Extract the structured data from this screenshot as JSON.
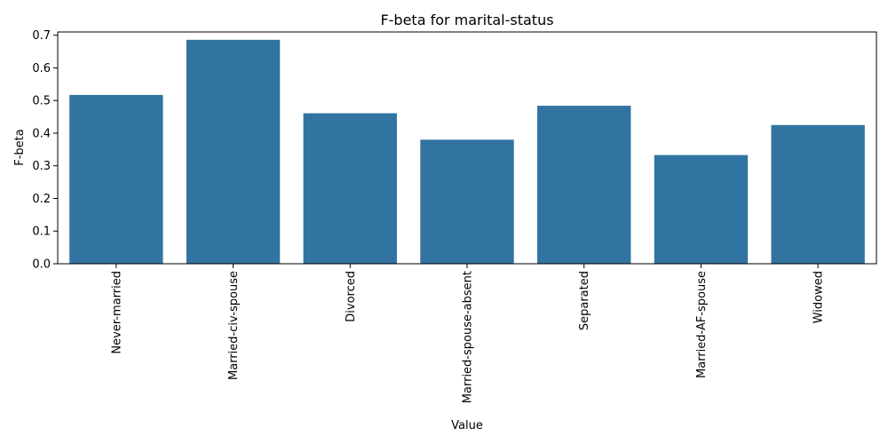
{
  "chart_data": {
    "type": "bar",
    "title": "F-beta for marital-status",
    "xlabel": "Value",
    "ylabel": "F-beta",
    "categories": [
      "Never-married",
      "Married-civ-spouse",
      "Divorced",
      "Married-spouse-absent",
      "Separated",
      "Married-AF-spouse",
      "Widowed"
    ],
    "values": [
      0.517,
      0.686,
      0.461,
      0.38,
      0.484,
      0.333,
      0.425
    ],
    "ylim": [
      0,
      0.71
    ],
    "yticks": [
      "0.0",
      "0.1",
      "0.2",
      "0.3",
      "0.4",
      "0.5",
      "0.6",
      "0.7"
    ],
    "bar_color": "#3274a1",
    "grid": false,
    "legend": "none"
  }
}
